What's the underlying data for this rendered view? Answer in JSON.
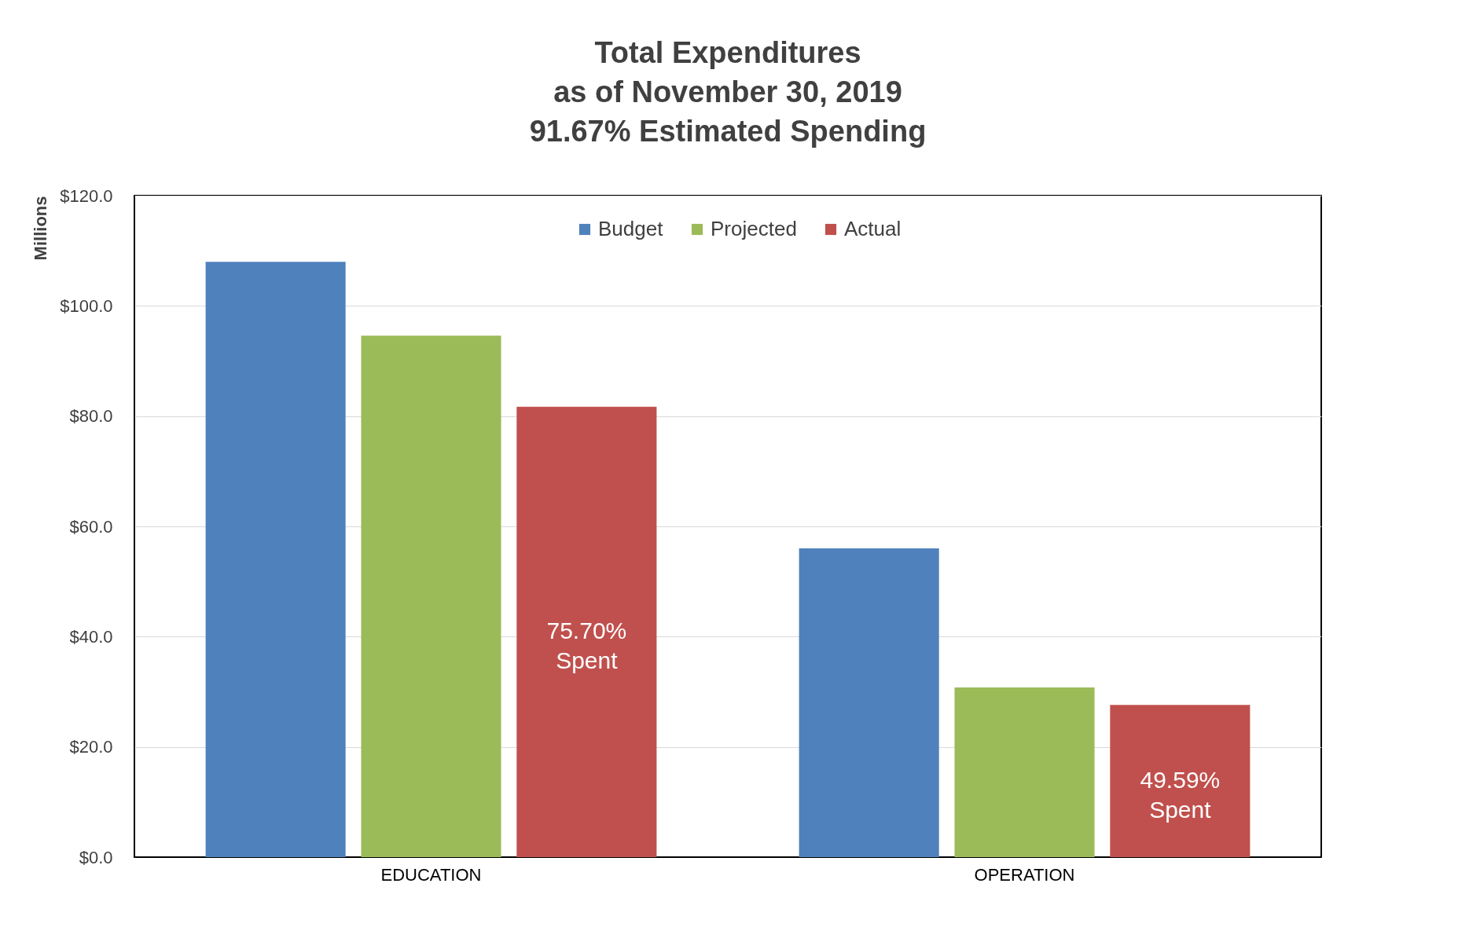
{
  "chart_data": {
    "type": "bar",
    "title": [
      "Total Expenditures",
      "as of November 30, 2019",
      "91.67% Estimated Spending"
    ],
    "ylabel": "Millions",
    "categories": [
      "EDUCATION",
      "OPERATION"
    ],
    "series": [
      {
        "name": "Budget",
        "color": "#4f81bd",
        "values": [
          108,
          56
        ]
      },
      {
        "name": "Projected",
        "color": "#9bbb59",
        "values": [
          94.6,
          30.8
        ]
      },
      {
        "name": "Actual",
        "color": "#c0504d",
        "values": [
          81.7,
          27.6
        ]
      }
    ],
    "ylim": [
      0,
      120
    ],
    "yticks": [
      {
        "value": 0,
        "label": "$0.0"
      },
      {
        "value": 20,
        "label": "$20.0"
      },
      {
        "value": 40,
        "label": "$40.0"
      },
      {
        "value": 60,
        "label": "$60.0"
      },
      {
        "value": 80,
        "label": "$80.0"
      },
      {
        "value": 100,
        "label": "$100.0"
      },
      {
        "value": 120,
        "label": "$120.0"
      }
    ],
    "annotations": [
      "75.70%\nSpent",
      "49.59%\nSpent"
    ],
    "grid": "y",
    "legend": "top"
  }
}
